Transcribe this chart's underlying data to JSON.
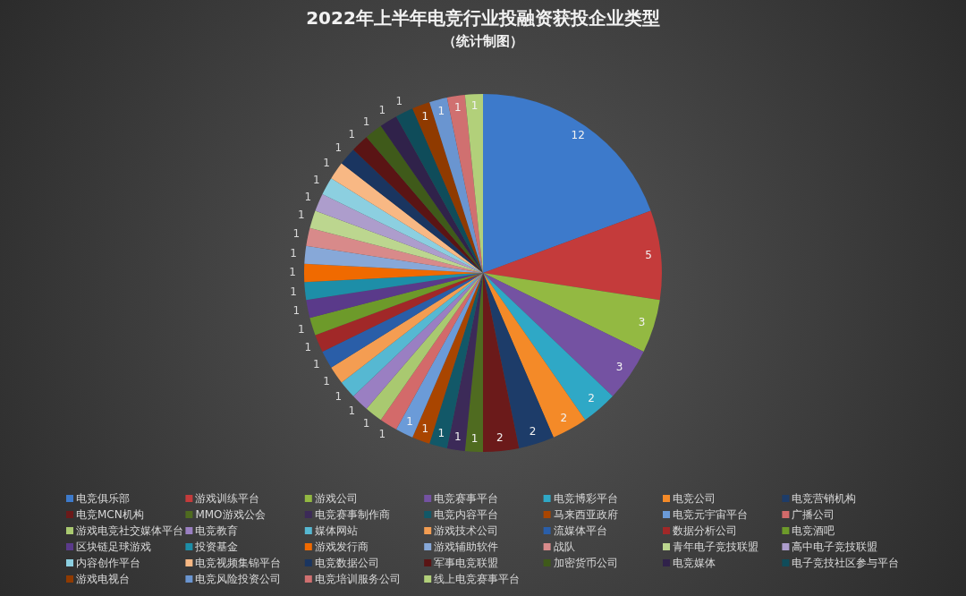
{
  "chart_data": {
    "type": "pie",
    "title": "2022年上半年电竞行业投融资获投企业类型",
    "subtitle": "（统计制图）",
    "categories": [
      "电竞俱乐部",
      "游戏训练平台",
      "游戏公司",
      "电竞赛事平台",
      "电竞博彩平台",
      "电竞公司",
      "电竞营销机构",
      "电竞MCN机构",
      "MMO游戏公会",
      "电竞赛事制作商",
      "电竞内容平台",
      "马来西亚政府",
      "电竞元宇宙平台",
      "广播公司",
      "游戏电竞社交媒体平台",
      "电竞教育",
      "媒体网站",
      "游戏技术公司",
      "流媒体平台",
      "数据分析公司",
      "电竞酒吧",
      "区块链足球游戏",
      "投资基金",
      "游戏发行商",
      "游戏辅助软件",
      "战队",
      "青年电子竞技联盟",
      "高中电子竞技联盟",
      "内容创作平台",
      "电竞视频集锦平台",
      "电竞数据公司",
      "军事电竞联盟",
      "加密货币公司",
      "电竞媒体",
      "电子竞技社区参与平台",
      "游戏电视台",
      "电竞风险投资公司",
      "电竞培训服务公司",
      "线上电竞赛事平台"
    ],
    "values": [
      12,
      5,
      3,
      3,
      2,
      2,
      2,
      2,
      1,
      1,
      1,
      1,
      1,
      1,
      1,
      1,
      1,
      1,
      1,
      1,
      1,
      1,
      1,
      1,
      1,
      1,
      1,
      1,
      1,
      1,
      1,
      1,
      1,
      1,
      1,
      1,
      1,
      1,
      1
    ],
    "colors": [
      "#3d7acb",
      "#c43b3b",
      "#93b942",
      "#7452a2",
      "#2fa8c6",
      "#f48a28",
      "#1d3c69",
      "#6b1a1a",
      "#4f6b20",
      "#3c2a58",
      "#125868",
      "#a94500",
      "#6b9bd8",
      "#d36a6a",
      "#a9c970",
      "#9a7fc2",
      "#56b8d2",
      "#f49d52",
      "#2a5ea8",
      "#a12828",
      "#6d9a2a",
      "#5a3a8a",
      "#1d8ea8",
      "#f06a00",
      "#87a8d8",
      "#d88a8a",
      "#bcd68f",
      "#ad9dcc",
      "#8ccfe0",
      "#f8b884",
      "#1a3560",
      "#5a1414",
      "#3f5a1a",
      "#30224a",
      "#0f4c5a",
      "#8f3a00",
      "#6a95d0",
      "#d07070",
      "#b2d07a"
    ],
    "data_labels": true,
    "legend": "bottom"
  }
}
